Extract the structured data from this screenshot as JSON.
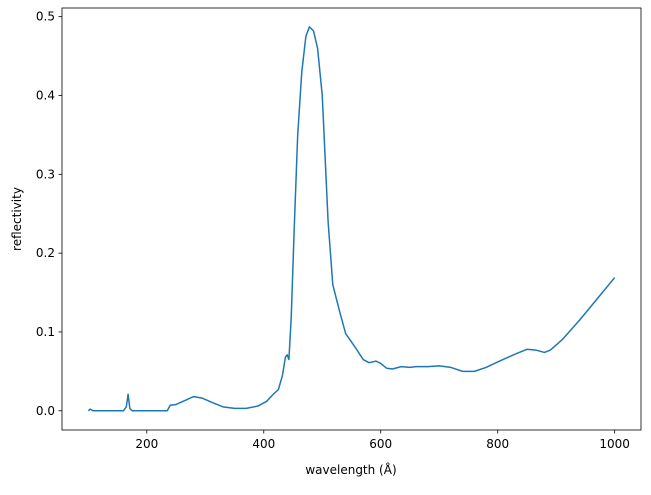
{
  "chart_data": {
    "type": "line",
    "xlabel": "wavelength (Å)",
    "ylabel": "reflectivity",
    "x": [
      100,
      103,
      108,
      120,
      160,
      165,
      168,
      171,
      175,
      200,
      235,
      240,
      250,
      265,
      280,
      295,
      310,
      330,
      350,
      370,
      390,
      405,
      415,
      425,
      432,
      437,
      440,
      443,
      447,
      452,
      458,
      465,
      472,
      478,
      485,
      492,
      500,
      505,
      510,
      518,
      530,
      540,
      555,
      570,
      580,
      592,
      600,
      610,
      620,
      635,
      650,
      660,
      680,
      700,
      720,
      740,
      760,
      780,
      800,
      830,
      850,
      865,
      880,
      890,
      910,
      940,
      970,
      1000
    ],
    "series": [
      {
        "name": "reflectivity",
        "color": "#1f77b4",
        "values": [
          0.0,
          0.002,
          0.0,
          0.0,
          0.0,
          0.005,
          0.021,
          0.003,
          0.0,
          0.0,
          0.0,
          0.007,
          0.008,
          0.013,
          0.018,
          0.016,
          0.011,
          0.005,
          0.003,
          0.003,
          0.006,
          0.012,
          0.02,
          0.027,
          0.045,
          0.068,
          0.071,
          0.065,
          0.12,
          0.23,
          0.35,
          0.43,
          0.475,
          0.487,
          0.482,
          0.46,
          0.4,
          0.32,
          0.24,
          0.16,
          0.125,
          0.098,
          0.082,
          0.065,
          0.061,
          0.063,
          0.06,
          0.054,
          0.053,
          0.056,
          0.055,
          0.056,
          0.056,
          0.057,
          0.055,
          0.05,
          0.05,
          0.055,
          0.062,
          0.072,
          0.078,
          0.077,
          0.074,
          0.077,
          0.09,
          0.115,
          0.142,
          0.169
        ]
      }
    ],
    "xlim": [
      55,
      1045
    ],
    "ylim": [
      -0.0244,
      0.511
    ],
    "xticks": [
      200,
      400,
      600,
      800,
      1000
    ],
    "yticks": [
      {
        "value": 0,
        "label": "0.0"
      },
      0.1,
      0.2,
      0.3,
      0.4,
      0.5
    ]
  }
}
